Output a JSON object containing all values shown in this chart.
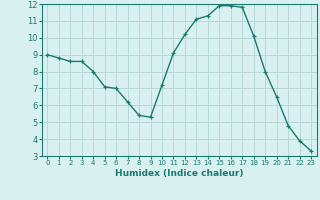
{
  "x": [
    0,
    1,
    2,
    3,
    4,
    5,
    6,
    7,
    8,
    9,
    10,
    11,
    12,
    13,
    14,
    15,
    16,
    17,
    18,
    19,
    20,
    21,
    22,
    23
  ],
  "y": [
    9.0,
    8.8,
    8.6,
    8.6,
    8.0,
    7.1,
    7.0,
    6.2,
    5.4,
    5.3,
    7.2,
    9.1,
    10.2,
    11.1,
    11.3,
    11.9,
    11.9,
    11.8,
    10.1,
    8.0,
    6.5,
    4.8,
    3.9,
    3.3
  ],
  "xlim": [
    -0.5,
    23.5
  ],
  "ylim": [
    3,
    12
  ],
  "yticks": [
    3,
    4,
    5,
    6,
    7,
    8,
    9,
    10,
    11,
    12
  ],
  "xticks": [
    0,
    1,
    2,
    3,
    4,
    5,
    6,
    7,
    8,
    9,
    10,
    11,
    12,
    13,
    14,
    15,
    16,
    17,
    18,
    19,
    20,
    21,
    22,
    23
  ],
  "xlabel": "Humidex (Indice chaleur)",
  "line_color": "#1a7a6e",
  "marker": "+",
  "bg_color": "#d8f0f0",
  "grid_color": "#b8d8d8",
  "tick_color": "#1a7a6e",
  "label_color": "#1a7a6e",
  "xlabel_fontsize": 6.5,
  "xtick_fontsize": 5.0,
  "ytick_fontsize": 6.0,
  "linewidth": 1.0,
  "markersize": 3.5
}
